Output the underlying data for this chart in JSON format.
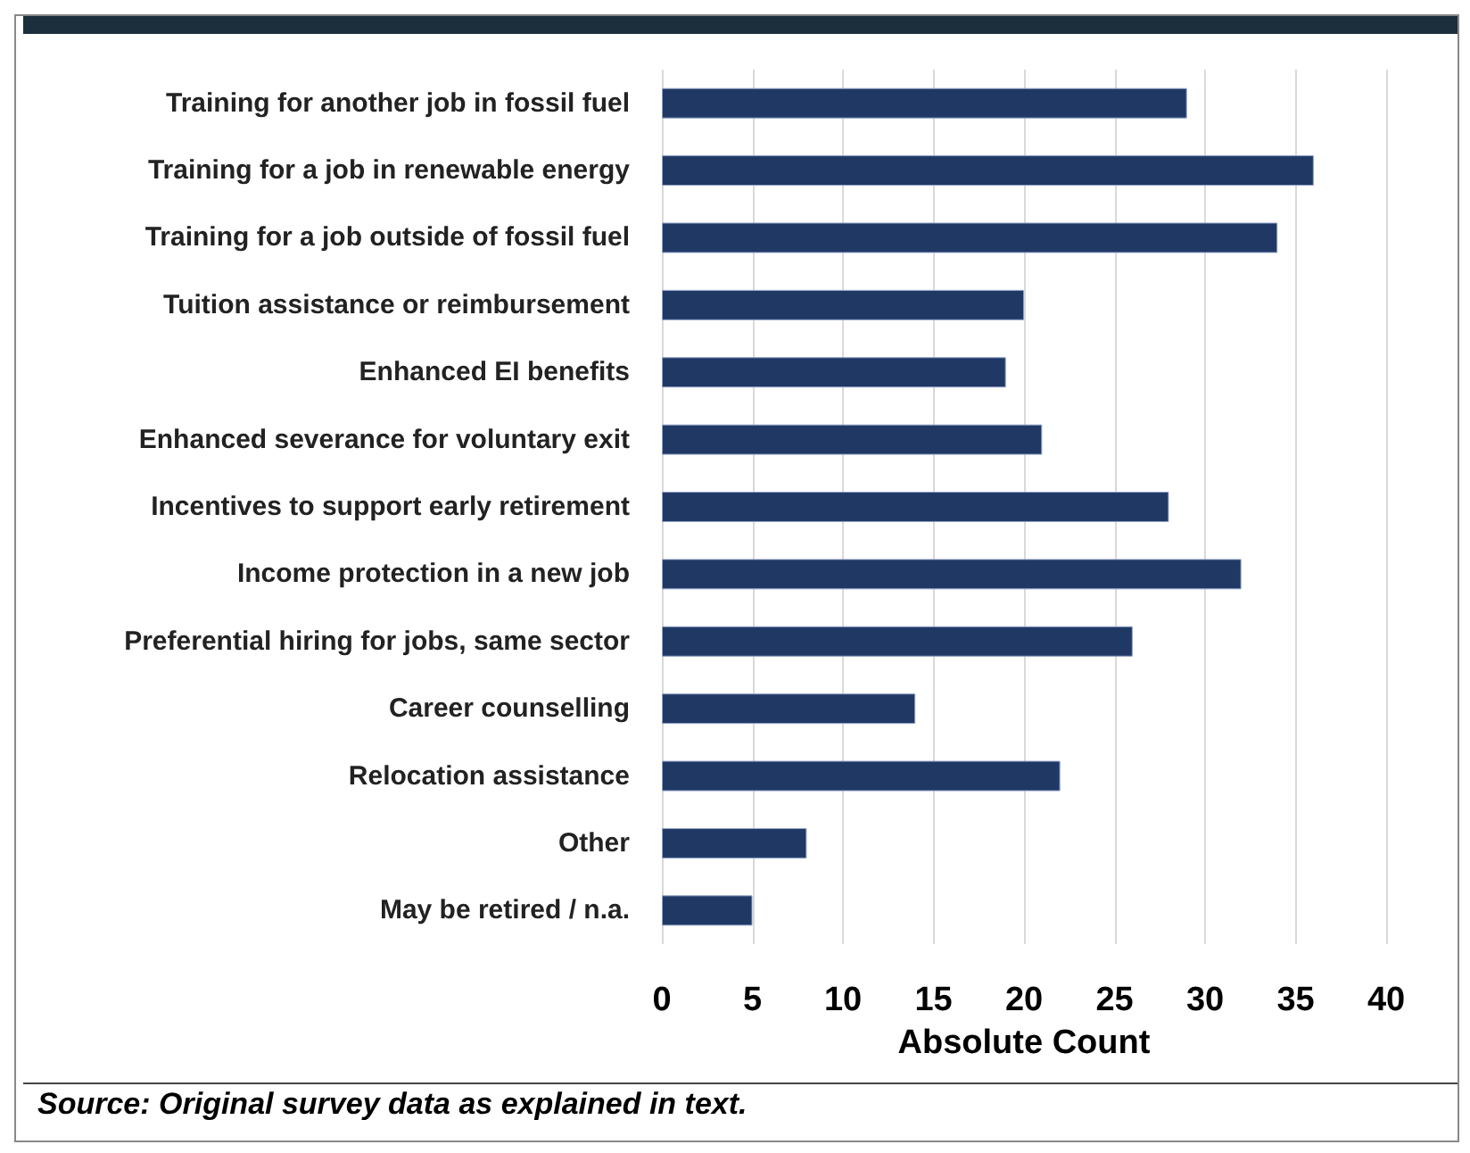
{
  "chart_data": {
    "type": "bar",
    "orientation": "horizontal",
    "categories": [
      "Training for another job in fossil fuel",
      "Training for a job in renewable energy",
      "Training for a job outside of fossil fuel",
      "Tuition assistance or reimbursement",
      "Enhanced EI benefits",
      "Enhanced severance for voluntary exit",
      "Incentives to support early retirement",
      "Income protection in a new job",
      "Preferential hiring for jobs, same sector",
      "Career counselling",
      "Relocation assistance",
      "Other",
      "May be retired / n.a."
    ],
    "values": [
      29,
      36,
      34,
      20,
      19,
      21,
      28,
      32,
      26,
      14,
      22,
      8,
      5
    ],
    "color": "#203864",
    "xlim": [
      0,
      40
    ],
    "xticks": [
      0,
      5,
      10,
      15,
      20,
      25,
      30,
      35,
      40
    ],
    "xlabel": "Absolute Count",
    "grid": "x",
    "annotations": [
      "Source: Original survey data as explained in text."
    ]
  }
}
